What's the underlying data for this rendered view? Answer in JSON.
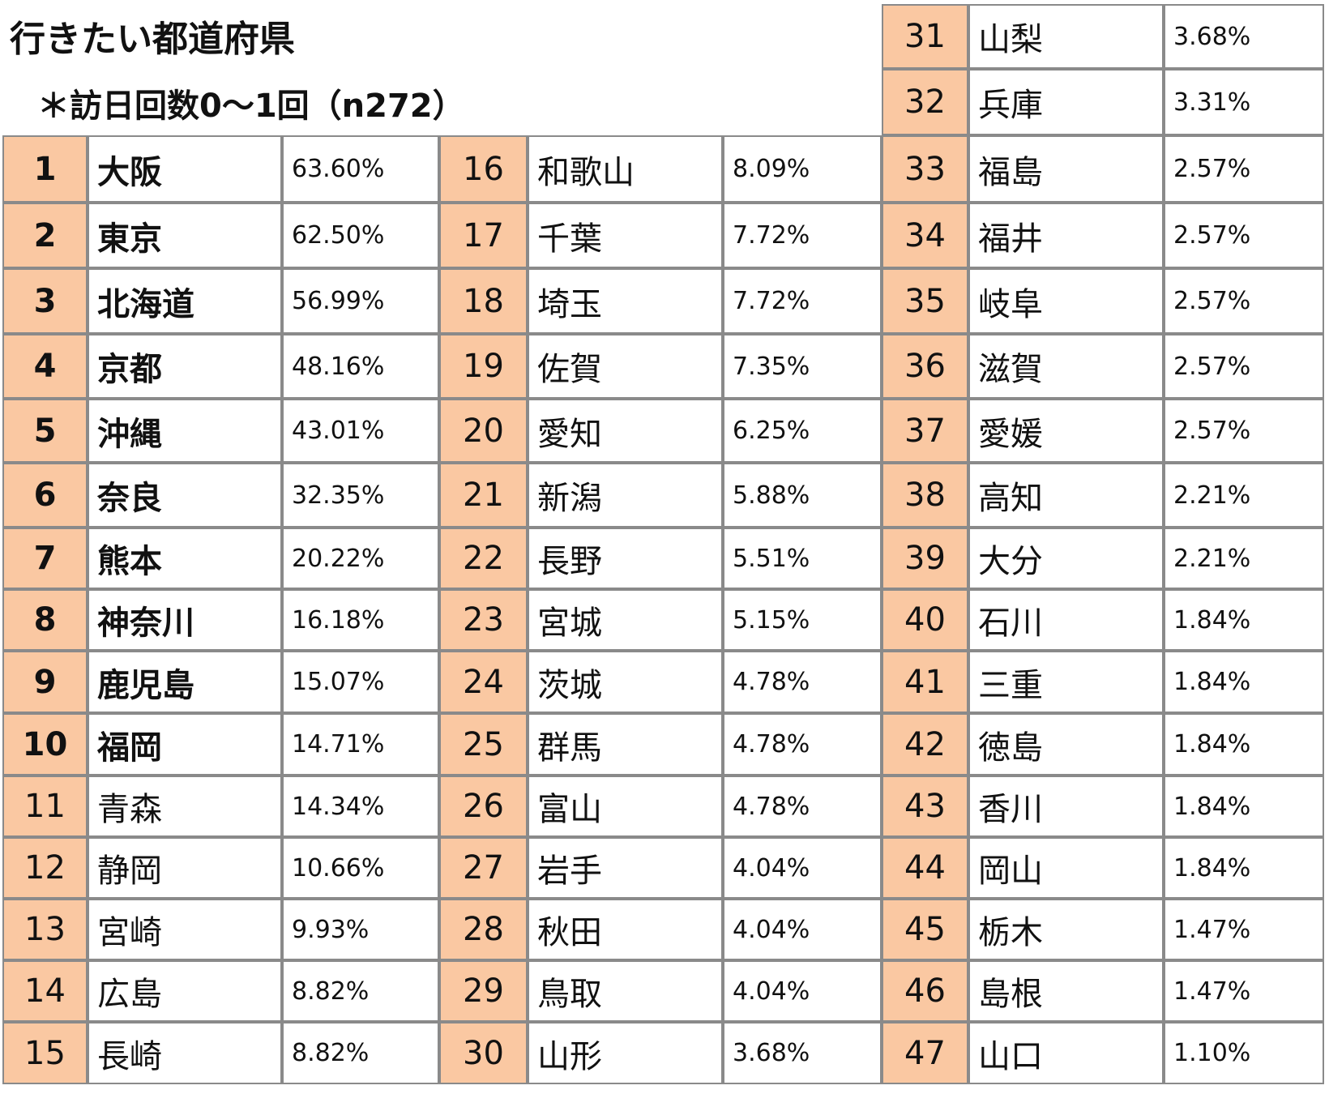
{
  "header": {
    "title": "行きたい都道府県",
    "subtitle": "＊訪日回数0～1回（n272）"
  },
  "tables": [
    {
      "rows": [
        [
          1,
          "大阪",
          "63.60%"
        ],
        [
          2,
          "東京",
          "62.50%"
        ],
        [
          3,
          "北海道",
          "56.99%"
        ],
        [
          4,
          "京都",
          "48.16%"
        ],
        [
          5,
          "沖縄",
          "43.01%"
        ],
        [
          6,
          "奈良",
          "32.35%"
        ],
        [
          7,
          "熊本",
          "20.22%"
        ],
        [
          8,
          "神奈川",
          "16.18%"
        ],
        [
          9,
          "鹿児島",
          "15.07%"
        ],
        [
          10,
          "福岡",
          "14.71%"
        ],
        [
          11,
          "青森",
          "14.34%"
        ],
        [
          12,
          "静岡",
          "10.66%"
        ],
        [
          13,
          "宮崎",
          "9.93%"
        ],
        [
          14,
          "広島",
          "8.82%"
        ],
        [
          15,
          "長崎",
          "8.82%"
        ]
      ]
    },
    {
      "rows": [
        [
          16,
          "和歌山",
          "8.09%"
        ],
        [
          17,
          "千葉",
          "7.72%"
        ],
        [
          18,
          "埼玉",
          "7.72%"
        ],
        [
          19,
          "佐賀",
          "7.35%"
        ],
        [
          20,
          "愛知",
          "6.25%"
        ],
        [
          21,
          "新潟",
          "5.88%"
        ],
        [
          22,
          "長野",
          "5.51%"
        ],
        [
          23,
          "宮城",
          "5.15%"
        ],
        [
          24,
          "茨城",
          "4.78%"
        ],
        [
          25,
          "群馬",
          "4.78%"
        ],
        [
          26,
          "富山",
          "4.78%"
        ],
        [
          27,
          "岩手",
          "4.04%"
        ],
        [
          28,
          "秋田",
          "4.04%"
        ],
        [
          29,
          "鳥取",
          "4.04%"
        ],
        [
          30,
          "山形",
          "3.68%"
        ]
      ]
    },
    {
      "rows": [
        [
          31,
          "山梨",
          "3.68%"
        ],
        [
          32,
          "兵庫",
          "3.31%"
        ],
        [
          33,
          "福島",
          "2.57%"
        ],
        [
          34,
          "福井",
          "2.57%"
        ],
        [
          35,
          "岐阜",
          "2.57%"
        ],
        [
          36,
          "滋賀",
          "2.57%"
        ],
        [
          37,
          "愛媛",
          "2.57%"
        ],
        [
          38,
          "高知",
          "2.21%"
        ],
        [
          39,
          "大分",
          "2.21%"
        ],
        [
          40,
          "石川",
          "1.84%"
        ],
        [
          41,
          "三重",
          "1.84%"
        ],
        [
          42,
          "徳島",
          "1.84%"
        ],
        [
          43,
          "香川",
          "1.84%"
        ],
        [
          44,
          "岡山",
          "1.84%"
        ],
        [
          45,
          "栃木",
          "1.47%"
        ],
        [
          46,
          "島根",
          "1.47%"
        ],
        [
          47,
          "山口",
          "1.10%"
        ]
      ]
    }
  ]
}
